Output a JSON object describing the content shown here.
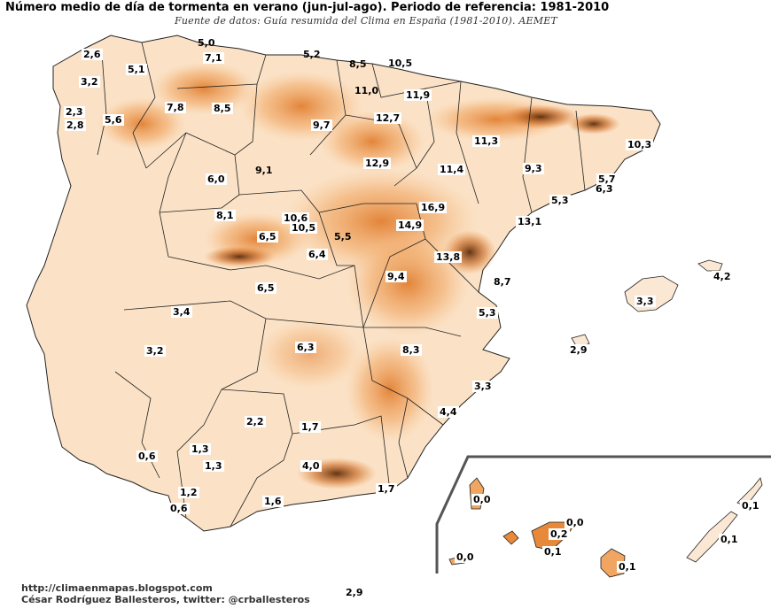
{
  "title": "Número medio de día de tormenta en verano (jun-jul-ago). Periodo de referencia: 1981-2010",
  "source": "Fuente de datos: Guía resumida del Clima en España (1981-2010). AEMET",
  "credits": {
    "url": "http://climaenmapas.blogspot.com",
    "author": "César Rodríguez Ballesteros, twitter: @crballesteros"
  },
  "bottom_value": "2,9",
  "colors": {
    "low": "#fdf1e4",
    "mid": "#f6c08c",
    "high": "#e8893a",
    "peak": "#6b3510",
    "borders": "#222222"
  },
  "province_values": [
    {
      "province": "A Coruña",
      "value": "2,6"
    },
    {
      "province": "Lugo",
      "value": "5,1"
    },
    {
      "province": "Asturias (Oviedo)",
      "value": "5,0"
    },
    {
      "province": "Asturias",
      "value": "7,1"
    },
    {
      "province": "Cantabria",
      "value": "5,2"
    },
    {
      "province": "Bizkaia",
      "value": "8,5"
    },
    {
      "province": "Gipuzkoa",
      "value": "10,5"
    },
    {
      "province": "A Coruña (Santiago)",
      "value": "3,2"
    },
    {
      "province": "Pontevedra (Vigo)",
      "value": "2,3"
    },
    {
      "province": "Pontevedra",
      "value": "2,8"
    },
    {
      "province": "Ourense",
      "value": "5,6"
    },
    {
      "province": "León (Ponferrada)",
      "value": "7,8"
    },
    {
      "province": "León",
      "value": "8,5"
    },
    {
      "province": "Araba",
      "value": "11,0"
    },
    {
      "province": "Navarra",
      "value": "11,9"
    },
    {
      "province": "Burgos",
      "value": "9,7"
    },
    {
      "province": "La Rioja",
      "value": "12,7"
    },
    {
      "province": "Huesca",
      "value": "11,3"
    },
    {
      "province": "Girona",
      "value": "10,3"
    },
    {
      "province": "Soria",
      "value": "12,9"
    },
    {
      "province": "Zamora",
      "value": "6,0"
    },
    {
      "province": "Valladolid",
      "value": "9,1"
    },
    {
      "province": "Zaragoza",
      "value": "11,4"
    },
    {
      "province": "Lleida",
      "value": "9,3"
    },
    {
      "province": "Barcelona",
      "value": "5,7"
    },
    {
      "province": "Barcelona (aeropuerto)",
      "value": "6,3"
    },
    {
      "province": "Tarragona",
      "value": "5,3"
    },
    {
      "province": "Guadalajara",
      "value": "16,9"
    },
    {
      "province": "Salamanca",
      "value": "8,1"
    },
    {
      "province": "Segovia",
      "value": "10,6"
    },
    {
      "province": "Ávila",
      "value": "10,5"
    },
    {
      "province": "Ávila (sur)",
      "value": "6,5"
    },
    {
      "province": "Madrid",
      "value": "5,5"
    },
    {
      "province": "Cuenca (norte)",
      "value": "14,9"
    },
    {
      "province": "Castellón",
      "value": "13,1"
    },
    {
      "province": "Teruel",
      "value": "13,8"
    },
    {
      "province": "Toledo",
      "value": "6,4"
    },
    {
      "province": "Cuenca",
      "value": "9,4"
    },
    {
      "province": "Valencia",
      "value": "8,7"
    },
    {
      "province": "Menorca",
      "value": "4,2"
    },
    {
      "province": "Cáceres",
      "value": "6,5"
    },
    {
      "province": "Mallorca",
      "value": "3,3"
    },
    {
      "province": "Badajoz",
      "value": "3,4"
    },
    {
      "province": "Alicante",
      "value": "5,3"
    },
    {
      "province": "Ibiza",
      "value": "2,9"
    },
    {
      "province": "Ciudad Real",
      "value": "6,3"
    },
    {
      "province": "Albacete",
      "value": "8,3"
    },
    {
      "province": "Huelva (norte)",
      "value": "3,2"
    },
    {
      "province": "Murcia",
      "value": "3,3"
    },
    {
      "province": "Murcia (interior)",
      "value": "4,4"
    },
    {
      "province": "Córdoba",
      "value": "2,2"
    },
    {
      "province": "Jaén",
      "value": "1,7"
    },
    {
      "province": "Sevilla",
      "value": "1,3"
    },
    {
      "province": "Huelva",
      "value": "0,6"
    },
    {
      "province": "Sevilla (sur)",
      "value": "1,3"
    },
    {
      "province": "Granada",
      "value": "4,0"
    },
    {
      "province": "Almería",
      "value": "1,7"
    },
    {
      "province": "Cádiz",
      "value": "1,2"
    },
    {
      "province": "Málaga",
      "value": "1,6"
    },
    {
      "province": "Cádiz (sur)",
      "value": "0,6"
    },
    {
      "province": "La Palma",
      "value": "0,0"
    },
    {
      "province": "Tenerife (norte)",
      "value": "0,0"
    },
    {
      "province": "Tenerife",
      "value": "0,2"
    },
    {
      "province": "Tenerife (sur)",
      "value": "0,1"
    },
    {
      "province": "El Hierro",
      "value": "0,0"
    },
    {
      "province": "Gran Canaria",
      "value": "0,1"
    },
    {
      "province": "Lanzarote",
      "value": "0,1"
    },
    {
      "province": "Fuerteventura",
      "value": "0,1"
    }
  ]
}
